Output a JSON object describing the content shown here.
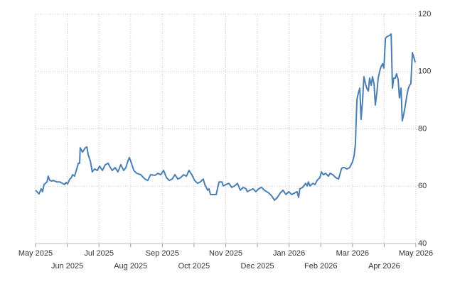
{
  "chart_data": {
    "type": "line",
    "color": "#4a7fb5",
    "grid": true,
    "xlim": [
      0,
      12
    ],
    "xticks": [
      {
        "value": 0,
        "label": "May 2025"
      },
      {
        "value": 1,
        "label": "Jun 2025"
      },
      {
        "value": 2,
        "label": "Jul 2025"
      },
      {
        "value": 3,
        "label": "Aug 2025"
      },
      {
        "value": 4,
        "label": "Sep 2025"
      },
      {
        "value": 5,
        "label": "Oct 2025"
      },
      {
        "value": 6,
        "label": "Nov 2025"
      },
      {
        "value": 7,
        "label": "Dec 2025"
      },
      {
        "value": 8,
        "label": "Jan 2026"
      },
      {
        "value": 9,
        "label": "Feb 2026"
      },
      {
        "value": 10,
        "label": "Mar 2026"
      },
      {
        "value": 11,
        "label": "Apr 2026"
      },
      {
        "value": 12,
        "label": "May 2026"
      }
    ],
    "ylim": [
      40,
      120
    ],
    "yticks": [
      40,
      60,
      80,
      100,
      120
    ],
    "x": [
      0,
      0.11,
      0.18,
      0.22,
      0.27,
      0.36,
      0.4,
      0.45,
      0.52,
      0.56,
      0.67,
      0.76,
      0.85,
      0.92,
      0.96,
      1.01,
      1.08,
      1.12,
      1.17,
      1.23,
      1.3,
      1.35,
      1.39,
      1.41,
      1.48,
      1.57,
      1.62,
      1.66,
      1.73,
      1.79,
      1.86,
      1.95,
      2.02,
      2.11,
      2.2,
      2.29,
      2.36,
      2.42,
      2.51,
      2.6,
      2.69,
      2.78,
      2.85,
      2.92,
      2.96,
      3.01,
      3.1,
      3.19,
      3.32,
      3.45,
      3.54,
      3.63,
      3.77,
      3.86,
      3.95,
      4.04,
      4.13,
      4.22,
      4.31,
      4.4,
      4.49,
      4.58,
      4.67,
      4.76,
      4.84,
      4.93,
      5.02,
      5.11,
      5.2,
      5.29,
      5.34,
      5.43,
      5.47,
      5.52,
      5.61,
      5.7,
      5.74,
      5.79,
      5.88,
      5.92,
      6.01,
      6.1,
      6.19,
      6.28,
      6.37,
      6.46,
      6.55,
      6.64,
      6.68,
      6.77,
      6.86,
      6.95,
      7.04,
      7.13,
      7.22,
      7.36,
      7.45,
      7.54,
      7.63,
      7.72,
      7.81,
      7.9,
      7.99,
      8.08,
      8.17,
      8.25,
      8.3,
      8.34,
      8.43,
      8.52,
      8.57,
      8.61,
      8.66,
      8.75,
      8.82,
      8.88,
      8.97,
      9.02,
      9.08,
      9.15,
      9.24,
      9.29,
      9.38,
      9.47,
      9.56,
      9.65,
      9.69,
      9.74,
      9.82,
      9.91,
      10.0,
      10.05,
      10.09,
      10.14,
      10.18,
      10.23,
      10.27,
      10.32,
      10.36,
      10.41,
      10.45,
      10.5,
      10.54,
      10.59,
      10.63,
      10.68,
      10.72,
      10.77,
      10.81,
      10.86,
      10.9,
      10.95,
      10.99,
      11.04,
      11.08,
      11.17,
      11.22,
      11.26,
      11.3,
      11.35,
      11.39,
      11.44,
      11.48,
      11.53,
      11.57,
      11.62,
      11.66,
      11.71,
      11.75,
      11.8,
      11.84,
      11.89,
      11.93,
      11.98
    ],
    "values": [
      58.6,
      57.3,
      59.1,
      58.1,
      60.6,
      61.5,
      63.5,
      62.0,
      61.8,
      62.0,
      61.5,
      61.5,
      61.0,
      60.6,
      61.3,
      60.8,
      62.5,
      62.8,
      64.0,
      63.5,
      66.0,
      68.0,
      68.0,
      73.4,
      71.9,
      73.4,
      73.7,
      71.0,
      68.7,
      65.0,
      66.0,
      65.5,
      67.0,
      65.5,
      67.5,
      68.0,
      66.5,
      65.5,
      66.5,
      65.0,
      67.5,
      65.5,
      66.5,
      69.0,
      70.0,
      68.5,
      65.5,
      64.5,
      64.0,
      62.5,
      62.0,
      64.0,
      63.8,
      64.5,
      64.0,
      65.5,
      63.0,
      62.0,
      62.5,
      64.0,
      62.5,
      63.0,
      64.0,
      63.5,
      65.5,
      64.0,
      62.0,
      61.0,
      61.5,
      62.5,
      60.6,
      58.6,
      59.1,
      57.1,
      57.1,
      57.1,
      59.1,
      61.5,
      61.5,
      60.1,
      60.6,
      61.0,
      59.6,
      60.1,
      61.0,
      58.6,
      59.6,
      59.1,
      58.1,
      58.6,
      59.1,
      58.1,
      59.1,
      59.6,
      58.6,
      57.6,
      56.6,
      55.1,
      56.1,
      57.6,
      58.6,
      57.1,
      58.1,
      57.1,
      57.6,
      58.1,
      56.1,
      59.1,
      59.6,
      61.0,
      60.1,
      61.5,
      60.1,
      61.0,
      60.6,
      62.0,
      63.0,
      65.0,
      64.0,
      64.5,
      63.5,
      64.5,
      64.0,
      63.0,
      62.5,
      66.0,
      66.5,
      66.5,
      66.0,
      66.5,
      68.5,
      70.5,
      74.4,
      90.3,
      92.3,
      94.2,
      83.3,
      90.3,
      98.2,
      95.7,
      94.2,
      93.2,
      97.7,
      95.2,
      98.2,
      95.7,
      88.3,
      92.8,
      97.7,
      100.2,
      101.7,
      102.7,
      101.2,
      111.6,
      112.1,
      112.6,
      113.1,
      94.2,
      97.7,
      97.7,
      99.2,
      97.2,
      90.8,
      94.2,
      82.8,
      85.3,
      87.8,
      91.3,
      93.7,
      95.2,
      95.7,
      106.6,
      105.1,
      103.2
    ]
  }
}
